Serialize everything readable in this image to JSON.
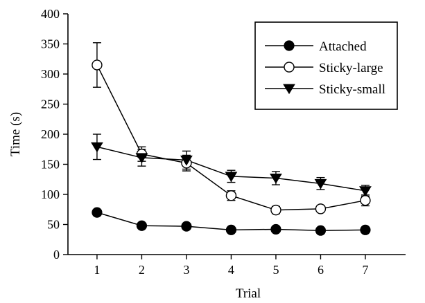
{
  "chart_data": {
    "type": "line",
    "title": "",
    "xlabel": "Trial",
    "ylabel": "Time (s)",
    "x": [
      1,
      2,
      3,
      4,
      5,
      6,
      7
    ],
    "xlim": [
      0.35,
      7.9
    ],
    "ylim": [
      0,
      400
    ],
    "yticks": [
      0,
      50,
      100,
      150,
      200,
      250,
      300,
      350,
      400
    ],
    "xticks": [
      1,
      2,
      3,
      4,
      5,
      6,
      7
    ],
    "grid": false,
    "legend_position": "top-right",
    "series": [
      {
        "name": "Attached",
        "marker": "filled-circle",
        "values": [
          70,
          48,
          47,
          41,
          42,
          40,
          41
        ],
        "errors": [
          3,
          3,
          3,
          3,
          3,
          3,
          3
        ]
      },
      {
        "name": "Sticky-large",
        "marker": "open-circle",
        "values": [
          315,
          167,
          152,
          98,
          74,
          76,
          90
        ],
        "errors": [
          37,
          12,
          13,
          8,
          6,
          5,
          9
        ]
      },
      {
        "name": "Sticky-small",
        "marker": "filled-triangle-down",
        "values": [
          179,
          161,
          157,
          130,
          127,
          118,
          106
        ],
        "errors": [
          21,
          14,
          15,
          10,
          11,
          10,
          9
        ]
      }
    ]
  }
}
